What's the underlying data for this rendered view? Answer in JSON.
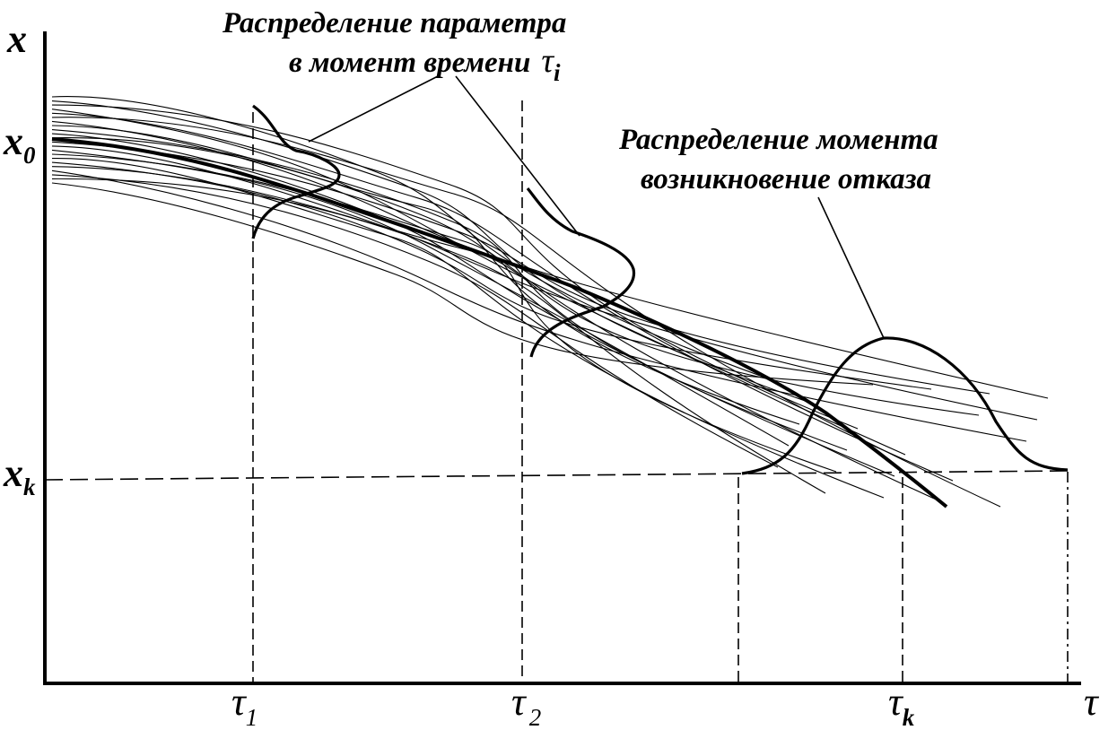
{
  "annotations": {
    "param_distribution_line1": "Распределение параметра",
    "param_distribution_line2": "в момент времени",
    "param_distribution_symbol": "τ",
    "param_distribution_subscript": "i",
    "failure_distribution_line1": "Распределение  момента",
    "failure_distribution_line2": "возникновение отказа"
  },
  "axes": {
    "y_symbol": "x",
    "x_symbol": "τ",
    "y_ticks": [
      {
        "symbol": "x",
        "subscript": "0"
      },
      {
        "symbol": "x",
        "subscript": "k"
      }
    ],
    "x_ticks": [
      {
        "symbol": "τ",
        "subscript": "1"
      },
      {
        "symbol": "τ",
        "subscript": "2"
      },
      {
        "symbol": "τ",
        "subscript": "k"
      }
    ]
  },
  "colors": {
    "ink": "#000000",
    "background": "#ffffff"
  }
}
